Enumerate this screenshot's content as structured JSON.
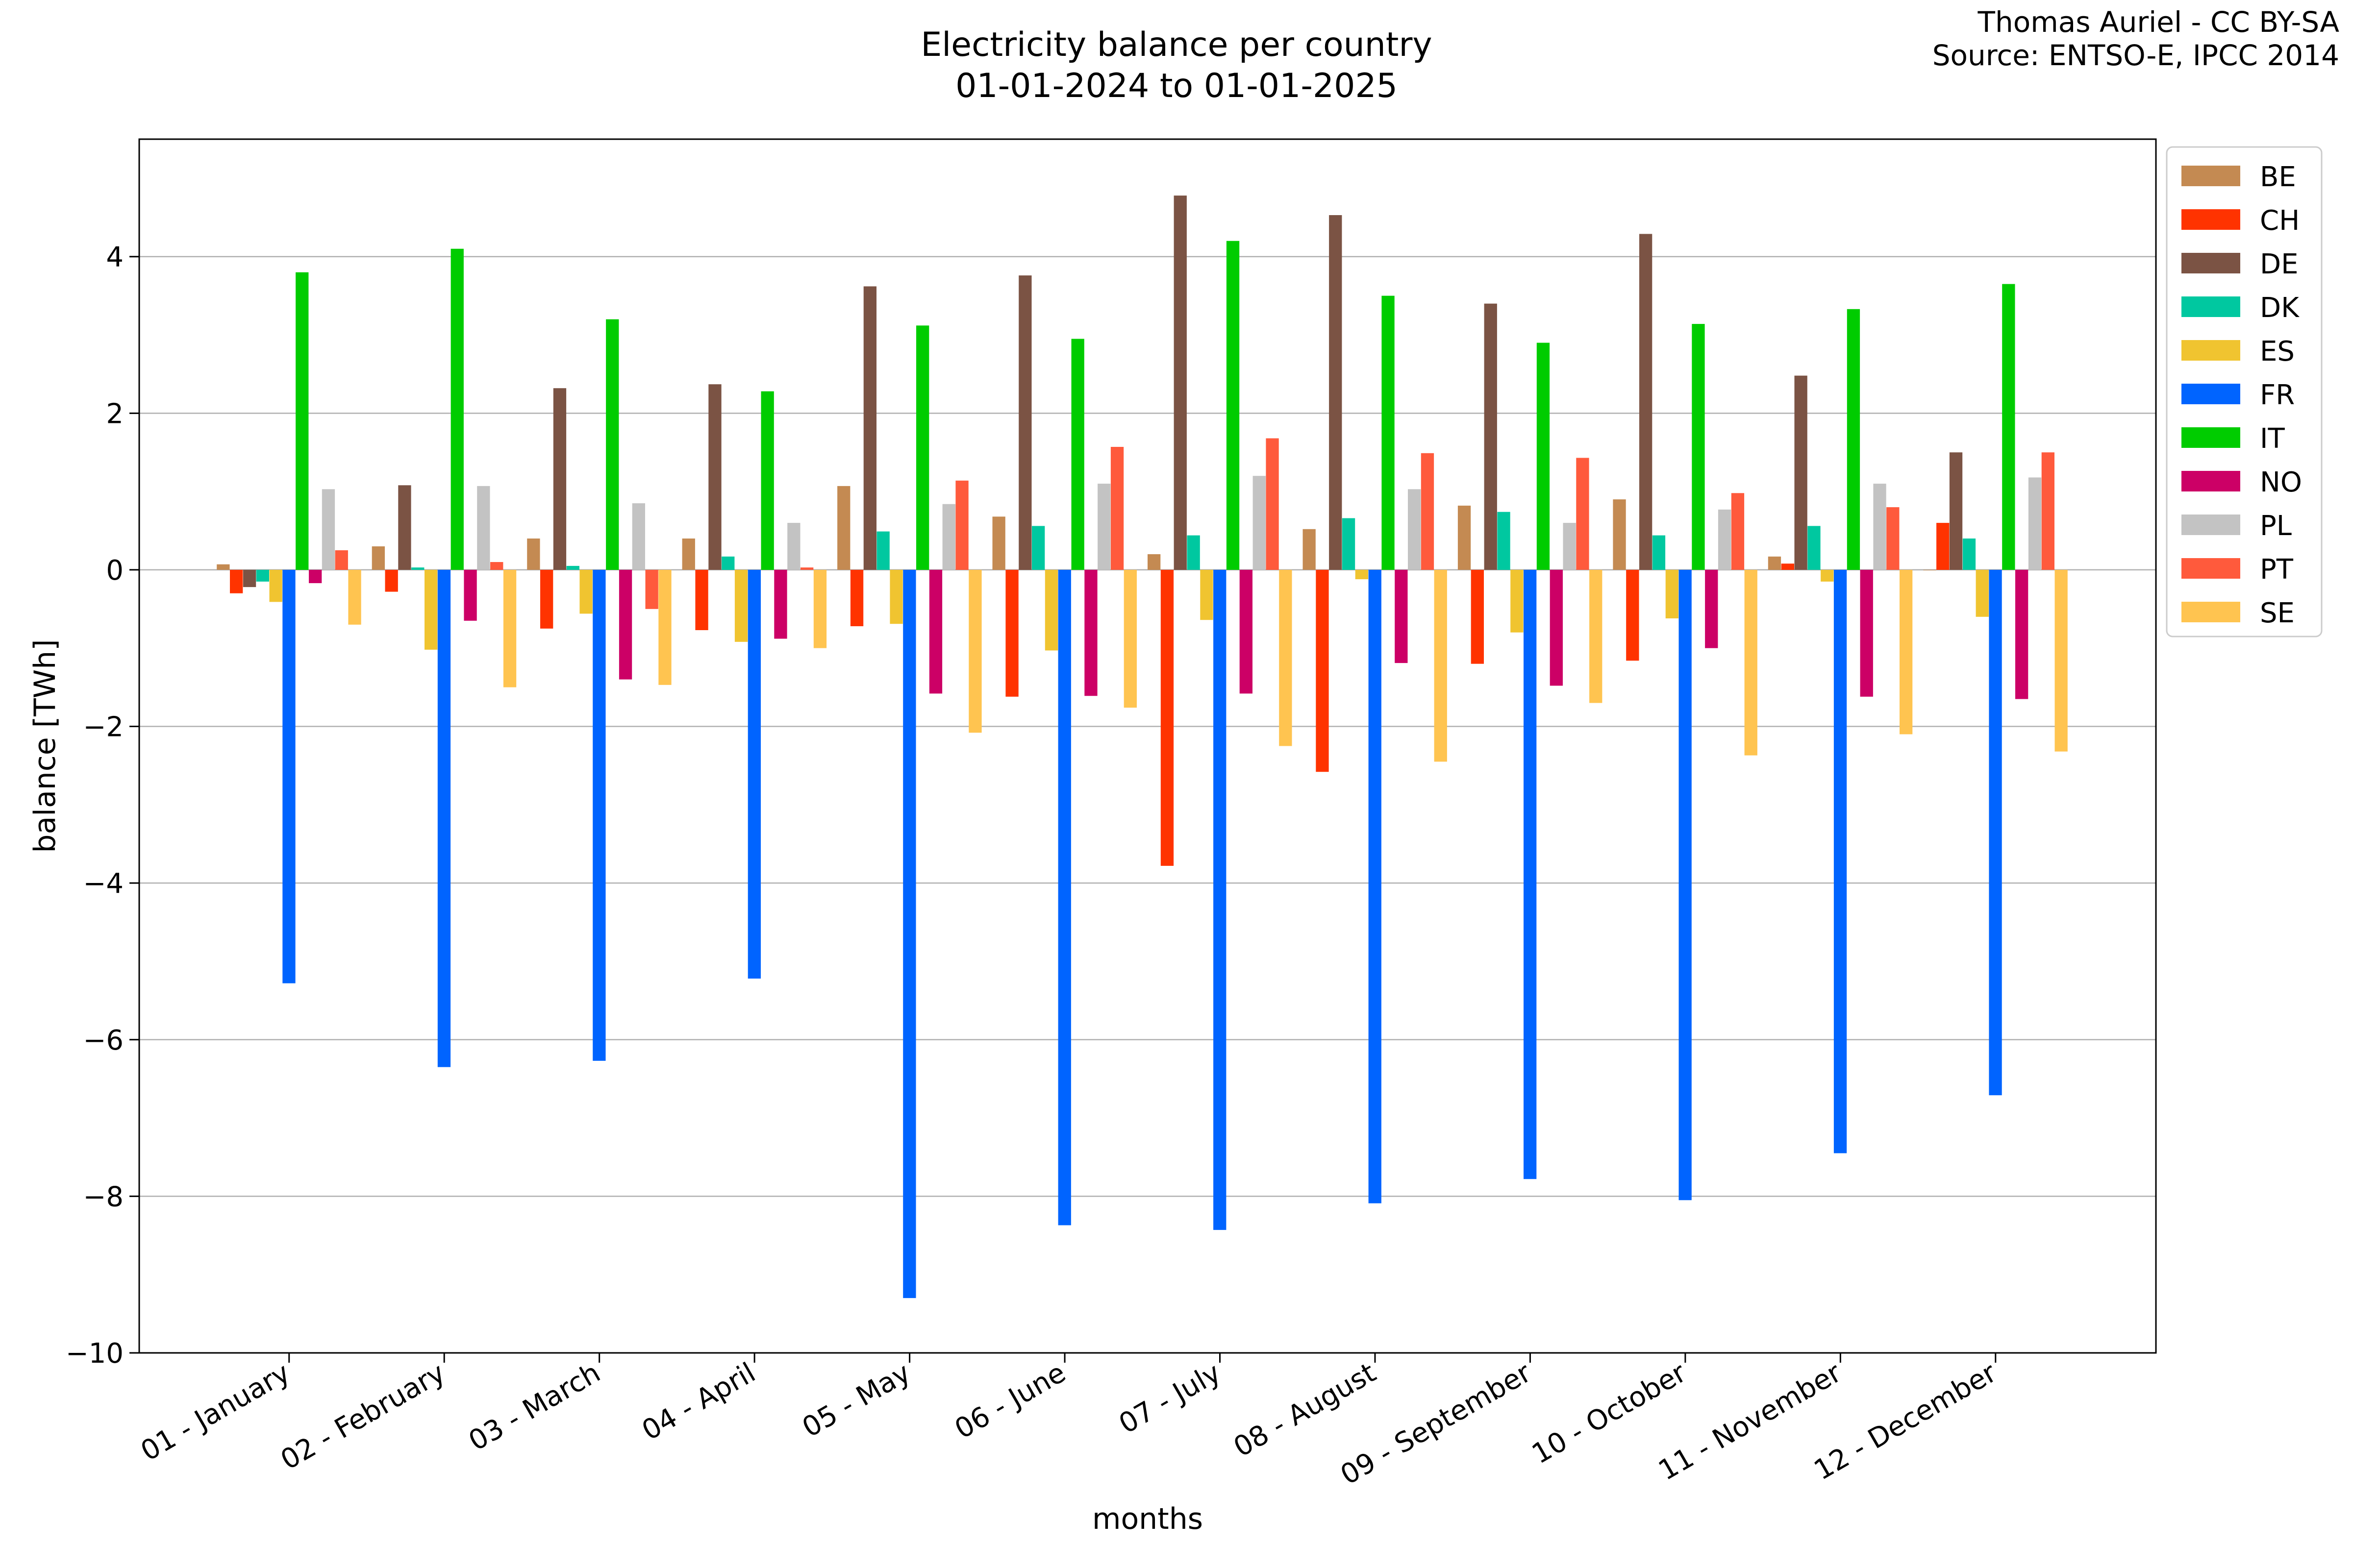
{
  "header": {
    "title_line1": "Electricity balance per country",
    "title_line2": "01-01-2024 to 01-01-2025",
    "credit_line1": "Thomas Auriel - CC BY-SA",
    "credit_line2": "Source: ENTSO-E, IPCC 2014"
  },
  "chart_data": {
    "type": "bar",
    "title": "Electricity balance per country\n01-01-2024 to 01-01-2025",
    "xlabel": "months",
    "ylabel": "balance [TWh]",
    "ylim": [
      -10,
      5.5
    ],
    "yticks": [
      4,
      2,
      0,
      -2,
      -4,
      -6,
      -8,
      -10
    ],
    "ytick_labels": [
      "4",
      "2",
      "0",
      "−2",
      "−4",
      "−6",
      "−8",
      "−10"
    ],
    "grid": "horizontal",
    "legend_position": "upper-right-outside",
    "categories": [
      "01 - January",
      "02 - February",
      "03 - March",
      "04 - April",
      "05 - May",
      "06 - June",
      "07 - July",
      "08 - August",
      "09 - September",
      "10 - October",
      "11 - November",
      "12 - December"
    ],
    "series": [
      {
        "name": "BE",
        "color": "#c48a52",
        "values": [
          0.07,
          0.3,
          0.4,
          0.4,
          1.07,
          0.68,
          0.2,
          0.52,
          0.82,
          0.9,
          0.17,
          0.0
        ]
      },
      {
        "name": "CH",
        "color": "#ff3300",
        "values": [
          -0.3,
          -0.28,
          -0.75,
          -0.77,
          -0.72,
          -1.62,
          -3.78,
          -2.58,
          -1.2,
          -1.16,
          0.08,
          0.6
        ]
      },
      {
        "name": "DE",
        "color": "#7b5344",
        "values": [
          -0.22,
          1.08,
          2.32,
          2.37,
          3.62,
          3.76,
          4.78,
          4.53,
          3.4,
          4.29,
          2.48,
          1.5
        ]
      },
      {
        "name": "DK",
        "color": "#00c8a0",
        "values": [
          -0.15,
          0.03,
          0.05,
          0.17,
          0.49,
          0.56,
          0.44,
          0.66,
          0.74,
          0.44,
          0.56,
          0.4
        ]
      },
      {
        "name": "ES",
        "color": "#f0c430",
        "values": [
          -0.41,
          -1.02,
          -0.56,
          -0.92,
          -0.69,
          -1.03,
          -0.64,
          -0.12,
          -0.8,
          -0.62,
          -0.15,
          -0.6
        ]
      },
      {
        "name": "FR",
        "color": "#0064ff",
        "values": [
          -5.28,
          -6.35,
          -6.27,
          -5.22,
          -9.3,
          -8.37,
          -8.43,
          -8.09,
          -7.78,
          -8.05,
          -7.45,
          -6.71
        ]
      },
      {
        "name": "IT",
        "color": "#00cc00",
        "values": [
          3.8,
          4.1,
          3.2,
          2.28,
          3.12,
          2.95,
          4.2,
          3.5,
          2.9,
          3.14,
          3.33,
          3.65
        ]
      },
      {
        "name": "NO",
        "color": "#cc0066",
        "values": [
          -0.17,
          -0.65,
          -1.4,
          -0.88,
          -1.58,
          -1.61,
          -1.58,
          -1.19,
          -1.48,
          -1.0,
          -1.62,
          -1.65
        ]
      },
      {
        "name": "PL",
        "color": "#c3c3c3",
        "values": [
          1.03,
          1.07,
          0.85,
          0.6,
          0.84,
          1.1,
          1.2,
          1.03,
          0.6,
          0.77,
          1.1,
          1.18
        ]
      },
      {
        "name": "PT",
        "color": "#ff5a3c",
        "values": [
          0.25,
          0.1,
          -0.5,
          0.03,
          1.14,
          1.57,
          1.68,
          1.49,
          1.43,
          0.98,
          0.8,
          1.5
        ]
      },
      {
        "name": "SE",
        "color": "#ffc450",
        "values": [
          -0.7,
          -1.5,
          -1.47,
          -1.0,
          -2.08,
          -1.76,
          -2.25,
          -2.45,
          -1.7,
          -2.37,
          -2.1,
          -2.32
        ]
      }
    ]
  }
}
